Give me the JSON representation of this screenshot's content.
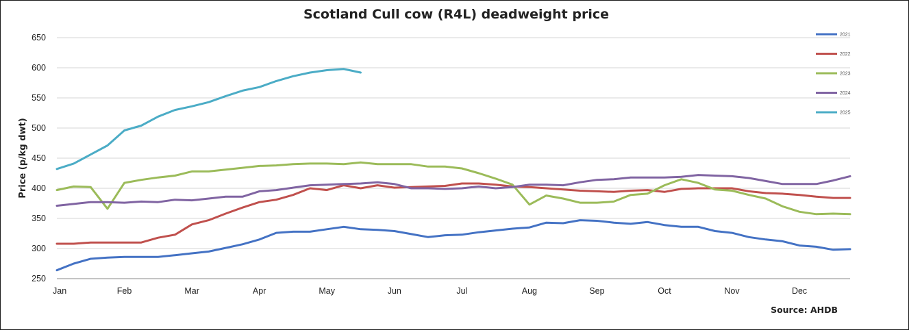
{
  "chart_data": {
    "type": "line",
    "title": "Scotland Cull cow (R4L) deadweight price",
    "xlabel": "",
    "ylabel": "Price (p/kg dwt)",
    "source": "Source: AHDB",
    "ylim": [
      250,
      650
    ],
    "yticks": [
      250,
      300,
      350,
      400,
      450,
      500,
      550,
      600,
      650
    ],
    "xlim": [
      1,
      48
    ],
    "month_labels": [
      "Jan",
      "Feb",
      "Mar",
      "Apr",
      "May",
      "Jun",
      "Jul",
      "Aug",
      "Sep",
      "Oct",
      "Nov",
      "Dec"
    ],
    "month_weeks": [
      1,
      5,
      9,
      13,
      17,
      21,
      25,
      29,
      33,
      37,
      41,
      45
    ],
    "grid": true,
    "legend_position": "top-right",
    "series": [
      {
        "name": "2021",
        "color": "#4472C4",
        "x": [
          1,
          2,
          3,
          4,
          5,
          6,
          7,
          8,
          9,
          10,
          11,
          12,
          13,
          14,
          15,
          16,
          17,
          18,
          19,
          20,
          21,
          22,
          23,
          24,
          25,
          26,
          27,
          28,
          29,
          30,
          31,
          32,
          33,
          34,
          35,
          36,
          37,
          38,
          39,
          40,
          41,
          42,
          43,
          44,
          45,
          46,
          47,
          48
        ],
        "values": [
          264,
          275,
          283,
          285,
          286,
          286,
          286,
          289,
          292,
          295,
          301,
          307,
          315,
          326,
          328,
          328,
          332,
          336,
          332,
          331,
          329,
          324,
          319,
          322,
          323,
          327,
          330,
          333,
          335,
          343,
          342,
          347,
          346,
          343,
          341,
          344,
          339,
          336,
          336,
          329,
          326,
          319,
          315,
          312,
          305,
          303,
          298,
          299
        ]
      },
      {
        "name": "2022",
        "color": "#C0504D",
        "x": [
          1,
          2,
          3,
          4,
          5,
          6,
          7,
          8,
          9,
          10,
          11,
          12,
          13,
          14,
          15,
          16,
          17,
          18,
          19,
          20,
          21,
          22,
          23,
          24,
          25,
          26,
          27,
          28,
          29,
          30,
          31,
          32,
          33,
          34,
          35,
          36,
          37,
          38,
          39,
          40,
          41,
          42,
          43,
          44,
          45,
          46,
          47,
          48
        ],
        "values": [
          308,
          308,
          310,
          310,
          310,
          310,
          318,
          323,
          340,
          347,
          358,
          368,
          377,
          381,
          389,
          400,
          397,
          405,
          400,
          405,
          401,
          402,
          403,
          404,
          408,
          408,
          406,
          403,
          402,
          400,
          398,
          396,
          395,
          394,
          396,
          397,
          394,
          399,
          400,
          400,
          400,
          395,
          392,
          391,
          389,
          386,
          384,
          384
        ]
      },
      {
        "name": "2023",
        "color": "#9BBB59",
        "x": [
          1,
          2,
          3,
          4,
          5,
          6,
          7,
          8,
          9,
          10,
          11,
          12,
          13,
          14,
          15,
          16,
          17,
          18,
          19,
          20,
          21,
          22,
          23,
          24,
          25,
          26,
          27,
          28,
          29,
          30,
          31,
          32,
          33,
          34,
          35,
          36,
          37,
          38,
          39,
          40,
          41,
          42,
          43,
          44,
          45,
          46,
          47,
          48
        ],
        "values": [
          397,
          403,
          402,
          366,
          409,
          414,
          418,
          421,
          428,
          428,
          431,
          434,
          437,
          438,
          440,
          441,
          441,
          440,
          443,
          440,
          440,
          440,
          436,
          436,
          433,
          425,
          416,
          406,
          373,
          388,
          383,
          376,
          376,
          378,
          389,
          391,
          405,
          415,
          409,
          398,
          396,
          389,
          383,
          370,
          361,
          357,
          358,
          357
        ]
      },
      {
        "name": "2024",
        "color": "#8064A2",
        "x": [
          1,
          2,
          3,
          4,
          5,
          6,
          7,
          8,
          9,
          10,
          11,
          12,
          13,
          14,
          15,
          16,
          17,
          18,
          19,
          20,
          21,
          22,
          23,
          24,
          25,
          26,
          27,
          28,
          29,
          30,
          31,
          32,
          33,
          34,
          35,
          36,
          37,
          38,
          39,
          40,
          41,
          42,
          43,
          44,
          45,
          46,
          47,
          48
        ],
        "values": [
          371,
          374,
          377,
          377,
          376,
          378,
          377,
          381,
          380,
          383,
          386,
          386,
          395,
          397,
          401,
          405,
          406,
          407,
          408,
          410,
          407,
          400,
          400,
          399,
          400,
          403,
          400,
          402,
          406,
          406,
          405,
          410,
          414,
          415,
          418,
          418,
          418,
          419,
          422,
          421,
          420,
          417,
          412,
          407,
          407,
          407,
          413,
          420
        ]
      },
      {
        "name": "2025",
        "color": "#4BACC6",
        "x": [
          1,
          2,
          3,
          4,
          5,
          6,
          7,
          8,
          9,
          10,
          11,
          12,
          13,
          14,
          15,
          16,
          17,
          18,
          19
        ],
        "values": [
          432,
          441,
          456,
          471,
          496,
          504,
          519,
          530,
          536,
          543,
          553,
          562,
          568,
          578,
          586,
          592,
          596,
          598,
          592
        ]
      }
    ]
  }
}
